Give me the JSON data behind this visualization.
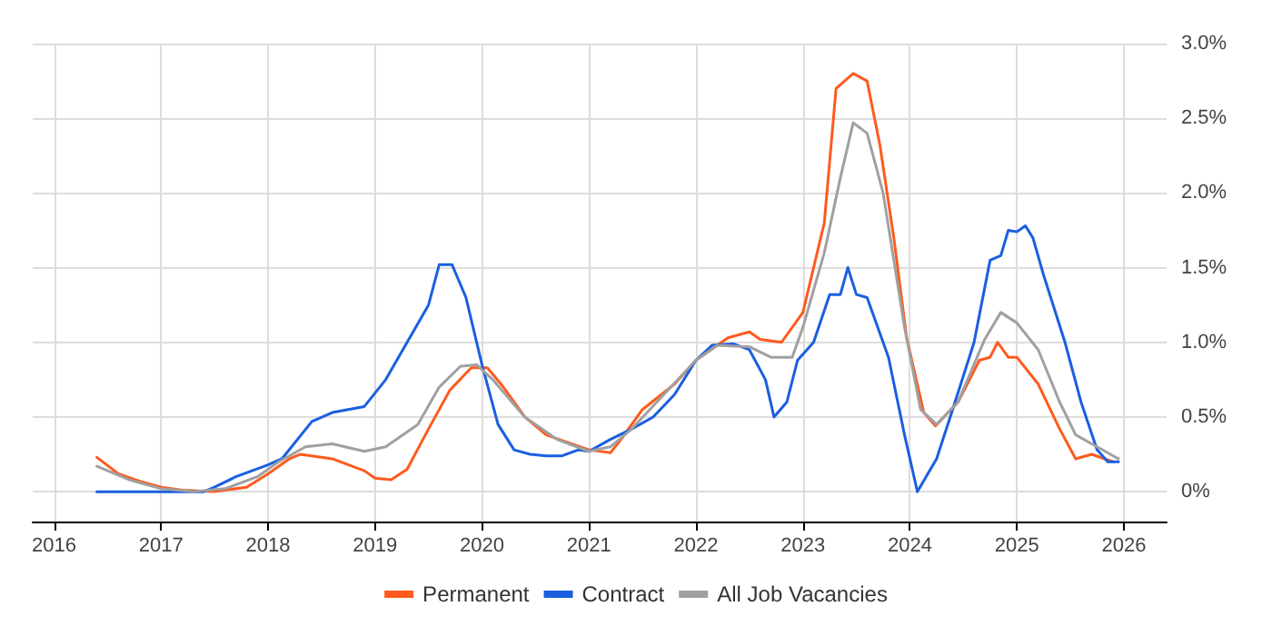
{
  "chart_data": {
    "type": "line",
    "xlim": [
      2015.8,
      2026.4
    ],
    "xticks": [
      2016,
      2017,
      2018,
      2019,
      2020,
      2021,
      2022,
      2023,
      2024,
      2025,
      2026
    ],
    "ylim": [
      -0.2,
      3
    ],
    "yticks": [
      {
        "value": 0,
        "label": "0%"
      },
      {
        "value": 0.5,
        "label": "0.5%"
      },
      {
        "value": 1,
        "label": "1.0%"
      },
      {
        "value": 1.5,
        "label": "1.5%"
      },
      {
        "value": 2,
        "label": "2.0%"
      },
      {
        "value": 2.5,
        "label": "2.5%"
      },
      {
        "value": 3,
        "label": "3.0%"
      }
    ],
    "grid": true,
    "legend": "bottom",
    "marker": "none",
    "line_style": "solid",
    "series": [
      {
        "name": "Permanent",
        "color": "#ff5a1e",
        "x": [
          2016.4,
          2016.6,
          2016.8,
          2017.0,
          2017.2,
          2017.5,
          2017.8,
          2018.0,
          2018.2,
          2018.3,
          2018.6,
          2018.9,
          2019.0,
          2019.15,
          2019.3,
          2019.5,
          2019.7,
          2019.9,
          2020.05,
          2020.2,
          2020.4,
          2020.6,
          2020.8,
          2021.0,
          2021.2,
          2021.3,
          2021.5,
          2021.8,
          2022.0,
          2022.3,
          2022.5,
          2022.6,
          2022.8,
          2023.0,
          2023.2,
          2023.31,
          2023.47,
          2023.6,
          2023.72,
          2023.85,
          2023.97,
          2024.13,
          2024.24,
          2024.45,
          2024.65,
          2024.75,
          2024.82,
          2024.92,
          2025.0,
          2025.2,
          2025.4,
          2025.55,
          2025.7,
          2025.9
        ],
        "values": [
          0.23,
          0.12,
          0.07,
          0.03,
          0.01,
          0.0,
          0.03,
          0.12,
          0.22,
          0.25,
          0.22,
          0.14,
          0.09,
          0.08,
          0.15,
          0.42,
          0.68,
          0.83,
          0.83,
          0.7,
          0.5,
          0.38,
          0.33,
          0.28,
          0.26,
          0.35,
          0.55,
          0.72,
          0.88,
          1.03,
          1.07,
          1.02,
          1.0,
          1.2,
          1.8,
          2.7,
          2.8,
          2.75,
          2.32,
          1.7,
          1.03,
          0.53,
          0.44,
          0.6,
          0.88,
          0.9,
          1.0,
          0.9,
          0.9,
          0.72,
          0.42,
          0.22,
          0.25,
          0.2
        ]
      },
      {
        "name": "Contract",
        "color": "#1a5fe0",
        "x": [
          2016.4,
          2017.4,
          2017.5,
          2017.7,
          2018.0,
          2018.13,
          2018.41,
          2018.6,
          2018.9,
          2019.1,
          2019.3,
          2019.5,
          2019.6,
          2019.72,
          2019.85,
          2020.0,
          2020.15,
          2020.3,
          2020.45,
          2020.6,
          2020.75,
          2020.9,
          2021.0,
          2021.2,
          2021.4,
          2021.6,
          2021.8,
          2022.0,
          2022.15,
          2022.35,
          2022.5,
          2022.65,
          2022.73,
          2022.85,
          2022.95,
          2023.1,
          2023.25,
          2023.35,
          2023.42,
          2023.5,
          2023.6,
          2023.8,
          2023.95,
          2024.07,
          2024.25,
          2024.4,
          2024.6,
          2024.75,
          2024.85,
          2024.92,
          2025.0,
          2025.08,
          2025.15,
          2025.25,
          2025.45,
          2025.6,
          2025.75,
          2025.85,
          2025.95
        ],
        "values": [
          0.0,
          0.0,
          0.03,
          0.1,
          0.18,
          0.22,
          0.47,
          0.53,
          0.57,
          0.75,
          1.0,
          1.25,
          1.52,
          1.52,
          1.3,
          0.85,
          0.45,
          0.28,
          0.25,
          0.24,
          0.24,
          0.28,
          0.27,
          0.35,
          0.42,
          0.5,
          0.65,
          0.88,
          0.98,
          0.99,
          0.95,
          0.75,
          0.5,
          0.6,
          0.88,
          1.0,
          1.32,
          1.32,
          1.5,
          1.32,
          1.3,
          0.9,
          0.38,
          0.0,
          0.22,
          0.55,
          1.0,
          1.55,
          1.58,
          1.75,
          1.74,
          1.78,
          1.7,
          1.45,
          1.0,
          0.6,
          0.28,
          0.2,
          0.2
        ]
      },
      {
        "name": "All Job Vacancies",
        "color": "#a0a0a0",
        "x": [
          2016.4,
          2016.7,
          2017.0,
          2017.3,
          2017.6,
          2017.9,
          2018.1,
          2018.35,
          2018.6,
          2018.9,
          2019.1,
          2019.4,
          2019.6,
          2019.8,
          2019.95,
          2020.1,
          2020.4,
          2020.7,
          2021.0,
          2021.2,
          2021.4,
          2021.7,
          2022.0,
          2022.2,
          2022.5,
          2022.7,
          2022.9,
          2023.0,
          2023.2,
          2023.35,
          2023.47,
          2023.6,
          2023.75,
          2023.95,
          2024.1,
          2024.25,
          2024.45,
          2024.7,
          2024.85,
          2025.0,
          2025.2,
          2025.4,
          2025.55,
          2025.75,
          2025.95
        ],
        "values": [
          0.17,
          0.08,
          0.02,
          0.0,
          0.02,
          0.1,
          0.2,
          0.3,
          0.32,
          0.27,
          0.3,
          0.45,
          0.7,
          0.84,
          0.85,
          0.75,
          0.5,
          0.35,
          0.27,
          0.3,
          0.42,
          0.65,
          0.88,
          0.98,
          0.97,
          0.9,
          0.9,
          1.1,
          1.6,
          2.1,
          2.47,
          2.4,
          2.0,
          1.1,
          0.55,
          0.45,
          0.6,
          1.02,
          1.2,
          1.13,
          0.95,
          0.6,
          0.38,
          0.3,
          0.22
        ]
      }
    ]
  }
}
